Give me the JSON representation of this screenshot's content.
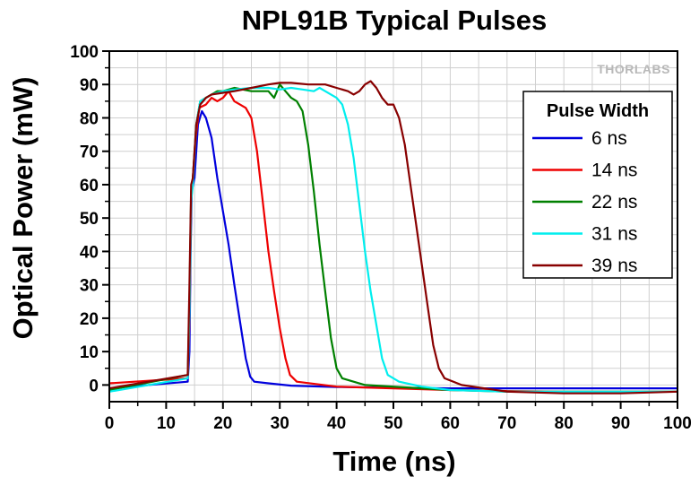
{
  "chart_data": {
    "type": "line",
    "title": "NPL91B Typical Pulses",
    "xlabel": "Time (ns)",
    "ylabel": "Optical Power (mW)",
    "xlim": [
      0,
      100
    ],
    "ylim": [
      -5,
      100
    ],
    "xticks": [
      0,
      10,
      20,
      30,
      40,
      50,
      60,
      70,
      80,
      90,
      100
    ],
    "yticks": [
      0,
      10,
      20,
      30,
      40,
      50,
      60,
      70,
      80,
      90,
      100
    ],
    "grid": true,
    "legend_title": "Pulse Width",
    "legend_position": "right",
    "watermark": "THORLABS",
    "series": [
      {
        "name": "6 ns",
        "color": "#0000dd",
        "points": [
          [
            0,
            -1
          ],
          [
            13.8,
            1
          ],
          [
            14.1,
            10
          ],
          [
            14.3,
            40
          ],
          [
            14.5,
            58
          ],
          [
            15,
            62
          ],
          [
            15.6,
            78
          ],
          [
            16.3,
            82
          ],
          [
            17,
            80
          ],
          [
            18,
            74
          ],
          [
            19,
            62
          ],
          [
            20,
            52
          ],
          [
            21,
            42
          ],
          [
            22,
            30
          ],
          [
            23,
            19
          ],
          [
            24,
            8
          ],
          [
            24.8,
            2.5
          ],
          [
            25.5,
            1
          ],
          [
            28,
            0.5
          ],
          [
            32,
            -0.2
          ],
          [
            40,
            -0.6
          ],
          [
            50,
            -0.8
          ],
          [
            60,
            -1
          ],
          [
            70,
            -1
          ],
          [
            80,
            -1
          ],
          [
            90,
            -1
          ],
          [
            100,
            -1
          ]
        ]
      },
      {
        "name": "14 ns",
        "color": "#ee0000",
        "points": [
          [
            0,
            0.5
          ],
          [
            13.8,
            2
          ],
          [
            14.1,
            20
          ],
          [
            14.4,
            55
          ],
          [
            14.7,
            62
          ],
          [
            15.2,
            74
          ],
          [
            15.8,
            83
          ],
          [
            17,
            84
          ],
          [
            18,
            86
          ],
          [
            19,
            85
          ],
          [
            20,
            86
          ],
          [
            21,
            88
          ],
          [
            22,
            85
          ],
          [
            23,
            84
          ],
          [
            24,
            83
          ],
          [
            25,
            80
          ],
          [
            26,
            70
          ],
          [
            27,
            55
          ],
          [
            28,
            40
          ],
          [
            29,
            28
          ],
          [
            30,
            17
          ],
          [
            31,
            8
          ],
          [
            31.8,
            3
          ],
          [
            33,
            1
          ],
          [
            40,
            -0.5
          ],
          [
            50,
            -1
          ],
          [
            60,
            -1.5
          ],
          [
            70,
            -1.8
          ],
          [
            80,
            -2
          ],
          [
            90,
            -2
          ],
          [
            100,
            -2
          ]
        ]
      },
      {
        "name": "22 ns",
        "color": "#008000",
        "points": [
          [
            0,
            -1.5
          ],
          [
            13.8,
            3
          ],
          [
            14.1,
            25
          ],
          [
            14.4,
            58
          ],
          [
            14.7,
            62
          ],
          [
            15.3,
            78
          ],
          [
            16,
            85
          ],
          [
            17,
            86
          ],
          [
            18,
            87
          ],
          [
            19,
            88
          ],
          [
            20,
            88
          ],
          [
            22,
            89
          ],
          [
            25,
            88
          ],
          [
            28,
            88
          ],
          [
            29,
            86
          ],
          [
            30,
            90
          ],
          [
            31,
            88
          ],
          [
            32,
            86
          ],
          [
            33,
            85
          ],
          [
            34,
            82
          ],
          [
            35,
            72
          ],
          [
            36,
            58
          ],
          [
            37,
            42
          ],
          [
            38,
            28
          ],
          [
            39,
            14
          ],
          [
            40,
            5
          ],
          [
            41,
            2
          ],
          [
            45,
            0
          ],
          [
            55,
            -1
          ],
          [
            60,
            -1.5
          ],
          [
            70,
            -2
          ],
          [
            80,
            -2
          ],
          [
            90,
            -2
          ],
          [
            100,
            -2
          ]
        ]
      },
      {
        "name": "31 ns",
        "color": "#00eeee",
        "points": [
          [
            0,
            -2
          ],
          [
            13.8,
            2
          ],
          [
            14.1,
            22
          ],
          [
            14.4,
            55
          ],
          [
            14.7,
            60
          ],
          [
            15.3,
            78
          ],
          [
            16,
            85
          ],
          [
            18,
            87
          ],
          [
            20,
            88
          ],
          [
            22,
            88.5
          ],
          [
            25,
            89
          ],
          [
            28,
            89
          ],
          [
            30,
            88.5
          ],
          [
            32,
            89
          ],
          [
            34,
            88.5
          ],
          [
            36,
            88
          ],
          [
            37,
            89
          ],
          [
            38,
            88
          ],
          [
            39,
            87
          ],
          [
            40,
            86
          ],
          [
            41,
            84
          ],
          [
            42,
            78
          ],
          [
            43,
            68
          ],
          [
            44,
            54
          ],
          [
            45,
            40
          ],
          [
            46,
            28
          ],
          [
            47,
            18
          ],
          [
            48,
            8
          ],
          [
            49,
            3
          ],
          [
            51,
            1
          ],
          [
            55,
            -0.5
          ],
          [
            60,
            -1.5
          ],
          [
            70,
            -2
          ],
          [
            80,
            -2
          ],
          [
            90,
            -2
          ],
          [
            100,
            -2
          ]
        ]
      },
      {
        "name": "39 ns",
        "color": "#880000",
        "points": [
          [
            0,
            -1
          ],
          [
            13.8,
            3
          ],
          [
            14.1,
            30
          ],
          [
            14.4,
            60
          ],
          [
            14.7,
            62
          ],
          [
            15.3,
            78
          ],
          [
            16,
            84
          ],
          [
            17,
            86
          ],
          [
            18,
            87
          ],
          [
            20,
            87.5
          ],
          [
            22,
            88
          ],
          [
            25,
            89
          ],
          [
            28,
            90
          ],
          [
            30,
            90.5
          ],
          [
            32,
            90.5
          ],
          [
            35,
            90
          ],
          [
            38,
            90
          ],
          [
            40,
            89
          ],
          [
            42,
            88
          ],
          [
            43,
            87
          ],
          [
            44,
            88
          ],
          [
            45,
            90
          ],
          [
            46,
            91
          ],
          [
            47,
            89
          ],
          [
            48,
            86
          ],
          [
            49,
            84
          ],
          [
            50,
            84
          ],
          [
            51,
            80
          ],
          [
            52,
            72
          ],
          [
            53,
            60
          ],
          [
            54,
            48
          ],
          [
            55,
            36
          ],
          [
            56,
            24
          ],
          [
            57,
            12
          ],
          [
            58,
            5
          ],
          [
            59,
            2
          ],
          [
            62,
            0
          ],
          [
            70,
            -2
          ],
          [
            80,
            -2.5
          ],
          [
            90,
            -2.5
          ],
          [
            100,
            -2
          ]
        ]
      }
    ]
  }
}
